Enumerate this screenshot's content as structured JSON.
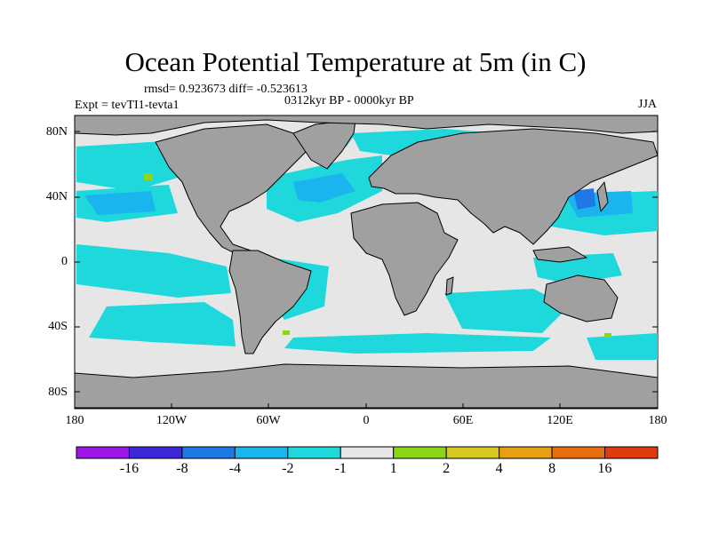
{
  "title": "Ocean Potential Temperature at 5m (in C)",
  "stats": "rmsd= 0.923673  diff= -0.523613",
  "experiment": "Expt = tevTI1-tevta1",
  "period": "0312kyr BP - 0000kyr BP",
  "season": "JJA",
  "colors": {
    "land": "#a0a0a0",
    "ocean_neutral": "#e6e6e6",
    "anomaly_minus1_minus2": "#1fd8dc",
    "anomaly_minus2_minus4": "#1ab4ef",
    "anomaly_minus4_minus8": "#1e78e6",
    "anomaly_plus1_plus2": "#8cd61a",
    "anomaly_plus2_plus4": "#d6c81e"
  },
  "axes": {
    "y_ticks": [
      "80N",
      "40N",
      "0",
      "40S",
      "80S"
    ],
    "x_ticks": [
      "180",
      "120W",
      "60W",
      "0",
      "60E",
      "120E",
      "180"
    ]
  },
  "colorbar": {
    "labels": [
      "-16",
      "-8",
      "-4",
      "-2",
      "-1",
      "1",
      "2",
      "4",
      "8",
      "16"
    ],
    "colors": [
      "#9b17e6",
      "#3c28d9",
      "#1e78e6",
      "#1ab4ef",
      "#1fd8dc",
      "#e6e6e6",
      "#8cd61a",
      "#d6c81e",
      "#e6a014",
      "#e66e0f",
      "#e03a10"
    ]
  }
}
